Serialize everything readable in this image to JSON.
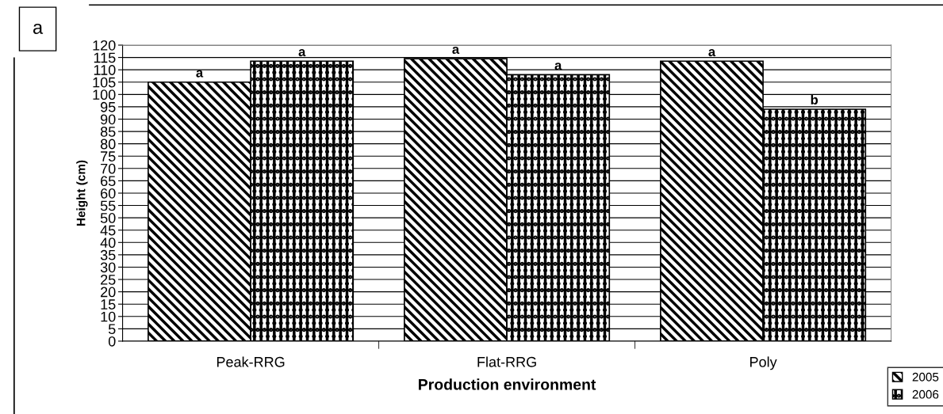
{
  "chart_data": {
    "type": "bar",
    "categories": [
      "Peak-RRG",
      "Flat-RRG",
      "Poly"
    ],
    "series": [
      {
        "name": "2005",
        "color": "#000000",
        "values": [
          105,
          114.5,
          113.5
        ],
        "value_labels": [
          "a",
          "a",
          "a"
        ]
      },
      {
        "name": "2006",
        "color": "#000000",
        "values": [
          113.5,
          108,
          94
        ],
        "value_labels": [
          "a",
          "a",
          "b"
        ]
      }
    ],
    "xlabel": "Production environment",
    "ylabel": "Height (cm)",
    "ylim": [
      0,
      120
    ],
    "yticks": [
      0,
      5,
      10,
      15,
      20,
      25,
      30,
      35,
      40,
      45,
      50,
      55,
      60,
      65,
      70,
      75,
      80,
      85,
      90,
      95,
      100,
      105,
      110,
      115,
      120
    ],
    "grid": "y",
    "legend": "bottom right",
    "annotations": [
      "a"
    ]
  }
}
